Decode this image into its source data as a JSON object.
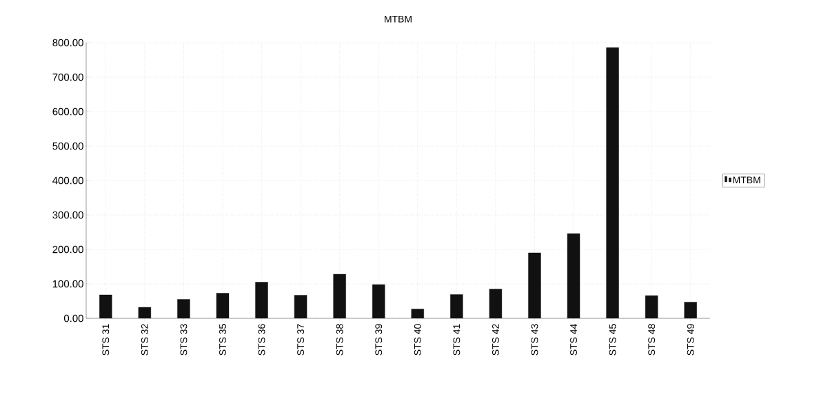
{
  "chart_data": {
    "type": "bar",
    "title": "MTBM",
    "categories": [
      "STS 31",
      "STS 32",
      "STS 33",
      "STS 35",
      "STS 36",
      "STS 37",
      "STS 38",
      "STS 39",
      "STS 40",
      "STS 41",
      "STS 42",
      "STS 43",
      "STS 44",
      "STS 45",
      "STS 48",
      "STS 49"
    ],
    "series": [
      {
        "name": "MTBM",
        "color": "#111111",
        "values": [
          68,
          32,
          55,
          73,
          105,
          67,
          128,
          98,
          27,
          69,
          85,
          190,
          246,
          786,
          66,
          47
        ]
      }
    ],
    "ylim": [
      0,
      800
    ],
    "yticks": [
      {
        "value": 0,
        "label": "0.00"
      },
      {
        "value": 100,
        "label": "100.00"
      },
      {
        "value": 200,
        "label": "200.00"
      },
      {
        "value": 300,
        "label": "300.00"
      },
      {
        "value": 400,
        "label": "400.00"
      },
      {
        "value": 500,
        "label": "500.00"
      },
      {
        "value": 600,
        "label": "600.00"
      },
      {
        "value": 700,
        "label": "700.00"
      },
      {
        "value": 800,
        "label": "800.00"
      }
    ],
    "grid": true,
    "legend": "right"
  }
}
